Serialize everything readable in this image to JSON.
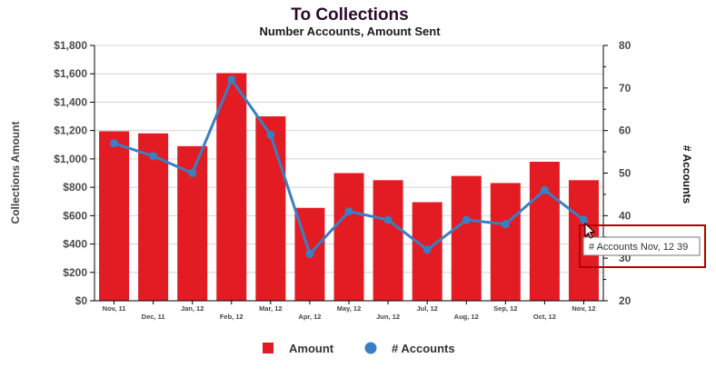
{
  "chart_data": {
    "type": "bar",
    "title": "To Collections",
    "subtitle": "Number Accounts, Amount Sent",
    "categories": [
      "Nov, 11",
      "Dec, 11",
      "Jan, 12",
      "Feb, 12",
      "Mar, 12",
      "Apr, 12",
      "May, 12",
      "Jun, 12",
      "Jul, 12",
      "Aug, 12",
      "Sep, 12",
      "Oct, 12",
      "Nov, 12"
    ],
    "ylabel": "Collections Amount",
    "y2label": "# Accounts",
    "ylim": [
      0,
      1800
    ],
    "y2lim": [
      20,
      80
    ],
    "yticks": [
      "$0",
      "$200",
      "$400",
      "$600",
      "$800",
      "$1,000",
      "$1,200",
      "$1,400",
      "$1,600",
      "$1,800"
    ],
    "y2ticks": [
      "20",
      "30",
      "40",
      "50",
      "60",
      "70",
      "80"
    ],
    "grid": true,
    "legend_position": "bottom",
    "series": [
      {
        "name": "Amount",
        "type": "bar",
        "axis": "left",
        "color": "#e31b23",
        "values": [
          1195,
          1180,
          1090,
          1605,
          1300,
          655,
          900,
          850,
          695,
          880,
          830,
          980,
          850
        ]
      },
      {
        "name": "# Accounts",
        "type": "line",
        "axis": "right",
        "color": "#3a7fc1",
        "values": [
          57,
          54,
          50,
          72,
          59,
          31,
          41,
          39,
          32,
          39,
          38,
          46,
          39
        ]
      }
    ],
    "tooltip": {
      "text": "# Accounts Nov, 12 39",
      "border_color": "#b80000"
    }
  }
}
